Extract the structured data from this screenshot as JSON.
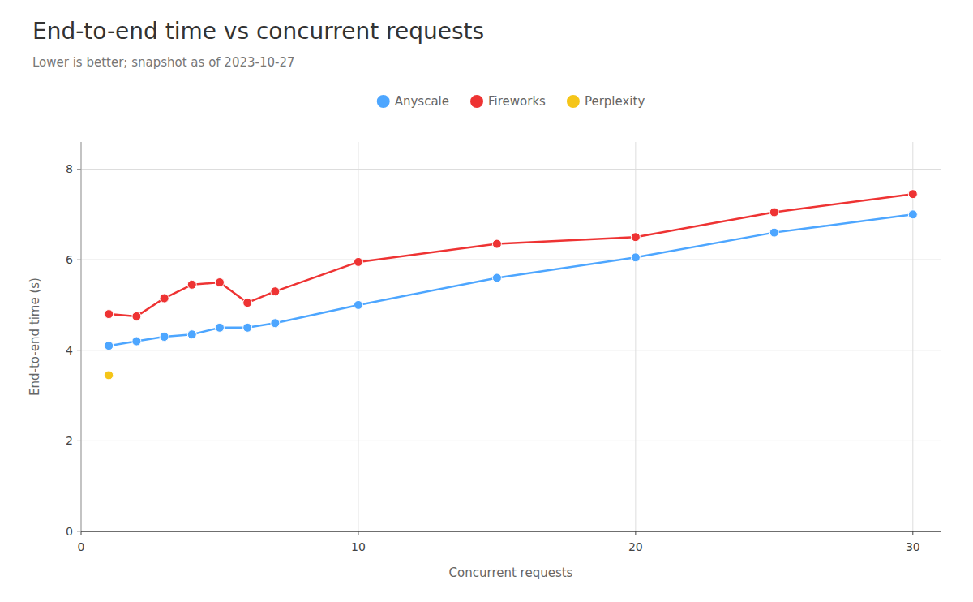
{
  "chart_data": {
    "type": "line",
    "title": "End-to-end time vs concurrent requests",
    "subtitle": "Lower is better; snapshot as of 2023-10-27",
    "x_label": "Concurrent requests",
    "y_label": "End-to-end time (s)",
    "series": [
      {
        "name": "Anyscale",
        "color": "#4da6ff",
        "marker": "circle",
        "line_style": "solid",
        "x": [
          1,
          2,
          3,
          4,
          5,
          6,
          7,
          10,
          15,
          20,
          25,
          30
        ],
        "values": [
          4.1,
          4.2,
          4.3,
          4.35,
          4.5,
          4.5,
          4.6,
          5.0,
          5.6,
          6.05,
          6.6,
          7.0
        ]
      },
      {
        "name": "Fireworks",
        "color": "#ee3333",
        "marker": "circle",
        "line_style": "solid",
        "x": [
          1,
          2,
          3,
          4,
          5,
          6,
          7,
          10,
          15,
          20,
          25,
          30
        ],
        "values": [
          4.8,
          4.75,
          5.15,
          5.45,
          5.5,
          5.05,
          5.3,
          5.95,
          6.35,
          6.5,
          7.05,
          7.45
        ]
      },
      {
        "name": "Perplexity",
        "color": "#f5c518",
        "marker": "circle",
        "line_style": "solid",
        "x": [
          1
        ],
        "values": [
          3.45
        ]
      }
    ],
    "xlim": [
      0,
      31
    ],
    "ylim": [
      0,
      8.6
    ],
    "xticks": [
      0,
      10,
      20,
      30
    ],
    "yticks": [
      0,
      2,
      4,
      6,
      8
    ],
    "grid": true,
    "legend": "top"
  }
}
